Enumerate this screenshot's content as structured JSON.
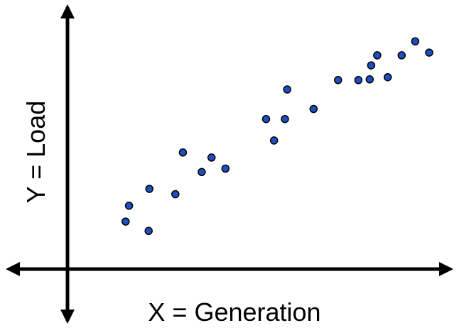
{
  "chart_data": {
    "type": "scatter",
    "title": "",
    "xlabel": "X = Generation",
    "ylabel": "Y = Load",
    "xlim": [
      0,
      100
    ],
    "ylim": [
      0,
      100
    ],
    "grid": false,
    "axis_color": "#000000",
    "marker_fill": "#1f4fbf",
    "marker_stroke": "#000000",
    "points": [
      {
        "x": 14.5,
        "y": 15.6
      },
      {
        "x": 15.4,
        "y": 22.2
      },
      {
        "x": 20.6,
        "y": 11.7
      },
      {
        "x": 20.8,
        "y": 29.2
      },
      {
        "x": 27.7,
        "y": 27.0
      },
      {
        "x": 29.7,
        "y": 44.3
      },
      {
        "x": 34.7,
        "y": 36.2
      },
      {
        "x": 37.3,
        "y": 42.2
      },
      {
        "x": 41.0,
        "y": 37.6
      },
      {
        "x": 51.8,
        "y": 58.2
      },
      {
        "x": 53.9,
        "y": 49.3
      },
      {
        "x": 56.8,
        "y": 58.2
      },
      {
        "x": 57.4,
        "y": 70.5
      },
      {
        "x": 64.4,
        "y": 62.4
      },
      {
        "x": 70.9,
        "y": 74.4
      },
      {
        "x": 76.3,
        "y": 74.4
      },
      {
        "x": 79.3,
        "y": 74.7
      },
      {
        "x": 79.7,
        "y": 80.5
      },
      {
        "x": 81.3,
        "y": 84.7
      },
      {
        "x": 84.1,
        "y": 75.6
      },
      {
        "x": 87.8,
        "y": 84.7
      },
      {
        "x": 91.4,
        "y": 90.5
      },
      {
        "x": 95.1,
        "y": 85.8
      }
    ]
  }
}
